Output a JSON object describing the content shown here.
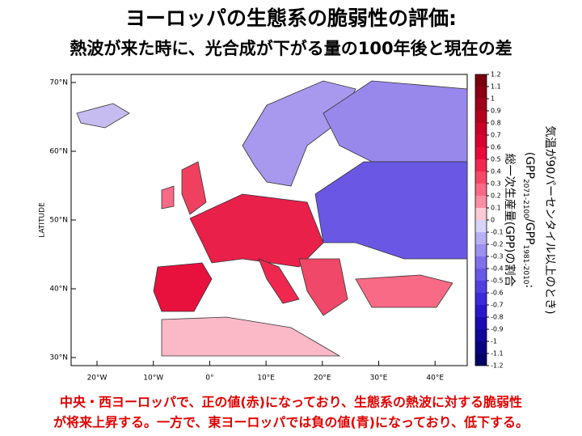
{
  "title": {
    "line1": "ヨーロッパの生態系の脆弱性の評価:",
    "line2": "熱波が来た時に、光合成が下がる量の100年後と現在の差"
  },
  "map": {
    "y_axis_label": "LATITUDE",
    "lat_ticks": [
      "70°N",
      "60°N",
      "50°N",
      "40°N",
      "30°N"
    ],
    "lon_ticks": [
      "20°W",
      "10°W",
      "0°",
      "10°E",
      "20°E",
      "30°E",
      "40°E"
    ]
  },
  "colorbar": {
    "levels": [
      1.2,
      1.1,
      1,
      0.9,
      0.8,
      0.7,
      0.6,
      0.5,
      0.4,
      0.3,
      0.2,
      0.1,
      0,
      -0.1,
      -0.2,
      -0.3,
      -0.4,
      -0.5,
      -0.6,
      -0.7,
      -0.8,
      -0.9,
      -1,
      -1.1,
      -1.2
    ],
    "colors": [
      "#7a0010",
      "#8b0015",
      "#a0001c",
      "#b40020",
      "#c80028",
      "#d8002f",
      "#e80a3a",
      "#f0284f",
      "#f54868",
      "#f86a85",
      "#fb8ea3",
      "#fdc9d4",
      "#d8d4f8",
      "#b8b0f4",
      "#9c90f0",
      "#8070ec",
      "#6858e6",
      "#5040e0",
      "#3a2ad8",
      "#2818c8",
      "#1a0cb0",
      "#100898",
      "#080480",
      "#040068"
    ],
    "label": {
      "line1": "総一次生産量(GPP)の割合",
      "line2": [
        "(GPP",
        "2071-2100",
        "/GPP",
        "1981-2010",
        ":"
      ],
      "line3": "気温が90パーセンタイル以上のとき)"
    }
  },
  "caption": {
    "line1": "中央・西ヨーロッパで、正の値(赤)になっており、生態系の熱波に対する脆弱性",
    "line2": "が将来上昇する。一方で、東ヨーロッパでは負の値(青)になっており、低下する。"
  }
}
